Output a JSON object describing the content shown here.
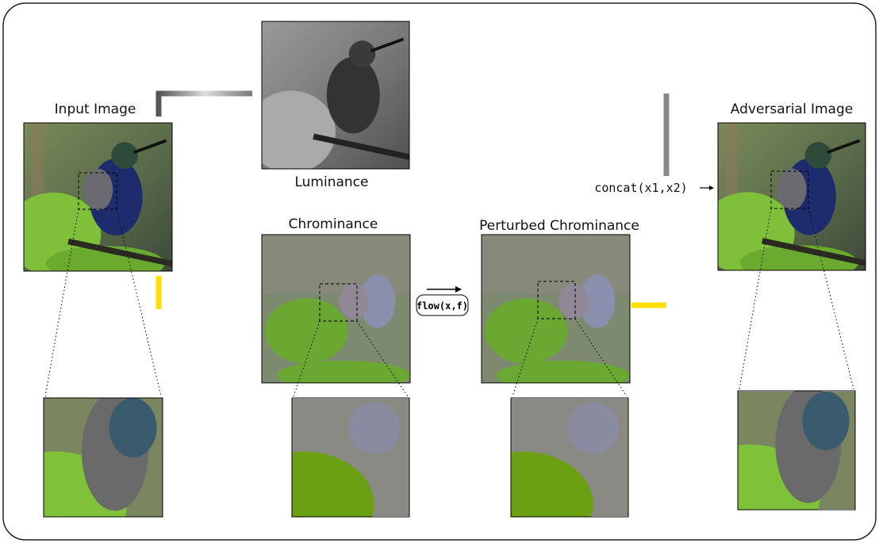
{
  "panels": [
    {
      "label": "Input Image"
    },
    {
      "label": "Luminance"
    },
    {
      "label": "Chrominance"
    },
    {
      "label": "Perturbed Chrominance"
    },
    {
      "label": "Adversarial Image"
    }
  ],
  "operations": {
    "concat": "concat(x1,x2)",
    "flow": "flow(x,f)"
  }
}
